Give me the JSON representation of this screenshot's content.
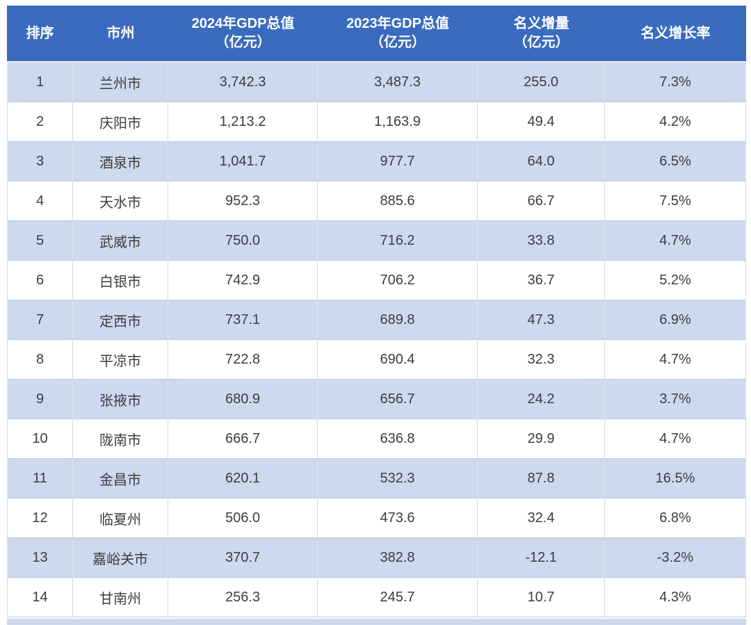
{
  "table": {
    "columns": [
      {
        "label": "排序",
        "sub": ""
      },
      {
        "label": "市州",
        "sub": ""
      },
      {
        "label": "2024年GDP总值",
        "sub": "（亿元）"
      },
      {
        "label": "2023年GDP总值",
        "sub": "（亿元）"
      },
      {
        "label": "名义增量",
        "sub": "（亿元）"
      },
      {
        "label": "名义增长率",
        "sub": ""
      }
    ],
    "rows": [
      [
        "1",
        "兰州市",
        "3,742.3",
        "3,487.3",
        "255.0",
        "7.3%"
      ],
      [
        "2",
        "庆阳市",
        "1,213.2",
        "1,163.9",
        "49.4",
        "4.2%"
      ],
      [
        "3",
        "酒泉市",
        "1,041.7",
        "977.7",
        "64.0",
        "6.5%"
      ],
      [
        "4",
        "天水市",
        "952.3",
        "885.6",
        "66.7",
        "7.5%"
      ],
      [
        "5",
        "武威市",
        "750.0",
        "716.2",
        "33.8",
        "4.7%"
      ],
      [
        "6",
        "白银市",
        "742.9",
        "706.2",
        "36.7",
        "5.2%"
      ],
      [
        "7",
        "定西市",
        "737.1",
        "689.8",
        "47.3",
        "6.9%"
      ],
      [
        "8",
        "平凉市",
        "722.8",
        "690.4",
        "32.3",
        "4.7%"
      ],
      [
        "9",
        "张掖市",
        "680.9",
        "656.7",
        "24.2",
        "3.7%"
      ],
      [
        "10",
        "陇南市",
        "666.7",
        "636.8",
        "29.9",
        "4.7%"
      ],
      [
        "11",
        "金昌市",
        "620.1",
        "532.3",
        "87.8",
        "16.5%"
      ],
      [
        "12",
        "临夏州",
        "506.0",
        "473.6",
        "32.4",
        "6.8%"
      ],
      [
        "13",
        "嘉峪关市",
        "370.7",
        "382.8",
        "-12.1",
        "-3.2%"
      ],
      [
        "14",
        "甘南州",
        "256.3",
        "245.7",
        "10.7",
        "4.3%"
      ]
    ]
  },
  "colors": {
    "header_bg": "#3a6bbf",
    "header_text": "#ffffff",
    "row_alt_bg": "#cdd9ed",
    "row_bg": "#ffffff",
    "grid_line": "#c3cddd",
    "body_text": "#3d3d3d"
  },
  "chart_data": {
    "type": "table",
    "columns": [
      "排序",
      "市州",
      "2024年GDP总值（亿元）",
      "2023年GDP总值（亿元）",
      "名义增量（亿元）",
      "名义增长率"
    ],
    "rows": [
      [
        1,
        "兰州市",
        3742.3,
        3487.3,
        255.0,
        "7.3%"
      ],
      [
        2,
        "庆阳市",
        1213.2,
        1163.9,
        49.4,
        "4.2%"
      ],
      [
        3,
        "酒泉市",
        1041.7,
        977.7,
        64.0,
        "6.5%"
      ],
      [
        4,
        "天水市",
        952.3,
        885.6,
        66.7,
        "7.5%"
      ],
      [
        5,
        "武威市",
        750.0,
        716.2,
        33.8,
        "4.7%"
      ],
      [
        6,
        "白银市",
        742.9,
        706.2,
        36.7,
        "5.2%"
      ],
      [
        7,
        "定西市",
        737.1,
        689.8,
        47.3,
        "6.9%"
      ],
      [
        8,
        "平凉市",
        722.8,
        690.4,
        32.3,
        "4.7%"
      ],
      [
        9,
        "张掖市",
        680.9,
        656.7,
        24.2,
        "3.7%"
      ],
      [
        10,
        "陇南市",
        666.7,
        636.8,
        29.9,
        "4.7%"
      ],
      [
        11,
        "金昌市",
        620.1,
        532.3,
        87.8,
        "16.5%"
      ],
      [
        12,
        "临夏州",
        506.0,
        473.6,
        32.4,
        "6.8%"
      ],
      [
        13,
        "嘉峪关市",
        370.7,
        382.8,
        -12.1,
        "-3.2%"
      ],
      [
        14,
        "甘南州",
        256.3,
        245.7,
        10.7,
        "4.3%"
      ]
    ]
  }
}
